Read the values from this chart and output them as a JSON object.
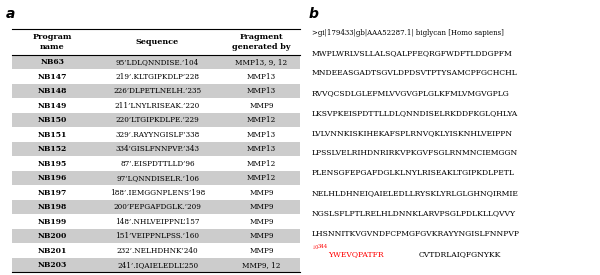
{
  "panel_a_label": "a",
  "panel_b_label": "b",
  "col_headers": [
    "Program\nname",
    "Sequence",
    "Fragment\ngenerated by"
  ],
  "rows": [
    {
      "name": "NB63",
      "seq": "95’LDLQNNDISE.’104",
      "frag": "MMP13, 9, 12",
      "shaded": true
    },
    {
      "name": "NB147",
      "seq": "219’.KLTGIPKDLP’228",
      "frag": "MMP13",
      "shaded": false
    },
    {
      "name": "NB148",
      "seq": "226’DLPETLNELH.’235",
      "frag": "MMP13",
      "shaded": true
    },
    {
      "name": "NB149",
      "seq": "211’LNYLRISEAK.’220",
      "frag": "MMP9",
      "shaded": false
    },
    {
      "name": "NB150",
      "seq": "220’LTGIPKDLPE.’229",
      "frag": "MMP12",
      "shaded": true
    },
    {
      "name": "NB151",
      "seq": "329’.RAYYNGISLF’338",
      "frag": "MMP13",
      "shaded": false
    },
    {
      "name": "NB152",
      "seq": "334’GISLFNNPVP.’343",
      "frag": "MMP13",
      "shaded": true
    },
    {
      "name": "NB195",
      "seq": "87’.EISPDTTLLD’96",
      "frag": "MMP12",
      "shaded": false
    },
    {
      "name": "NB196",
      "seq": "97’LQNNDISELR.’106",
      "frag": "MMP12",
      "shaded": true
    },
    {
      "name": "NB197",
      "seq": "188’.IEMGGNPLENS’198",
      "frag": "MMP9",
      "shaded": false
    },
    {
      "name": "NB198",
      "seq": "200’FEPGAFDGLK.’209",
      "frag": "MMP9",
      "shaded": true
    },
    {
      "name": "NB199",
      "seq": "148’.NHLVEIPPNL’157",
      "frag": "MMP9",
      "shaded": false
    },
    {
      "name": "NB200",
      "seq": "151’VEIPPNLPSS.’160",
      "frag": "MMP9",
      "shaded": true
    },
    {
      "name": "NB201",
      "seq": "232’.NELHDHNK’240",
      "frag": "MMP9",
      "shaded": false
    },
    {
      "name": "NB203",
      "seq": "241’.IQAIELEDLL’250",
      "frag": "MMP9, 12",
      "shaded": true
    }
  ],
  "shade_color": "#cccccc",
  "seq_header": ">gi|179433|gb|AAA52287.1| biglycan [Homo sapiens]",
  "seq_lines": [
    "MWPLWRLVSLLALSQALPFEQRGFWDFTLDDGPFM",
    "MNDEEASGADTSGVLDPDSVTPTYSAMCPFGCHCHL",
    "RVVQCSDLGLEFMLVVGVGPLGLKFMLVMGVGPLG",
    "LKSVPKEISPDTTLLDLQNNDISELRKDDFKGLQHLYA",
    "LVLVNNKISKIHEKAFSPLRNVQKLYISKNHLVEIPPN",
    "LPSSLVELRIHDNRIRKVPKGVFSGLRNMNCIEMGGN",
    "PLENSGFEPGAFDGLKLNYLRISEAKLTGIPKDLPETL",
    "NELHLDHNEIQAIELEDLLRYSKLYRLGLGHNQIRMIE",
    "NGSLSFLPTLRELHLDNNKLARVPSGLPDLKLLQVVY",
    "LHSNNITKVGVNDFCPMGFGVKRAYYNGISLFNNPVP"
  ],
  "last_line_red": "YWEVQPATFR",
  "last_line_black": "CVTDRLAIQFGNYKK",
  "last_line_super": "344"
}
